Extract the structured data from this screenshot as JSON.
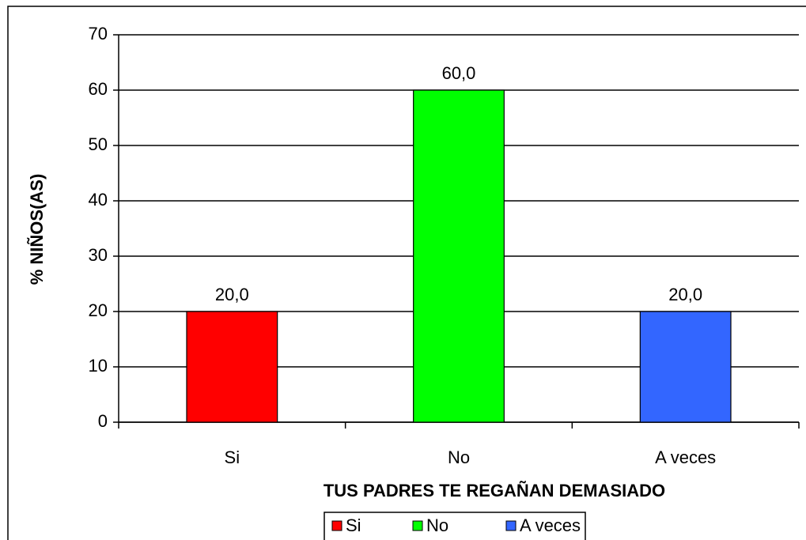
{
  "chart_data": {
    "type": "bar",
    "title": "TUS PADRES TE REGAÑAN DEMASIADO",
    "y_label": "% NIÑOS(AS)",
    "categories": [
      "Si",
      "No",
      "A veces"
    ],
    "values": [
      20,
      60,
      20
    ],
    "value_labels": [
      "20,0",
      "60,0",
      "20,0"
    ],
    "colors": [
      "#ff0000",
      "#00ff00",
      "#3366ff"
    ],
    "ylim": [
      0,
      70
    ],
    "yticks": [
      0,
      10,
      20,
      30,
      40,
      50,
      60,
      70
    ],
    "grid": true,
    "legend": "bottom"
  }
}
